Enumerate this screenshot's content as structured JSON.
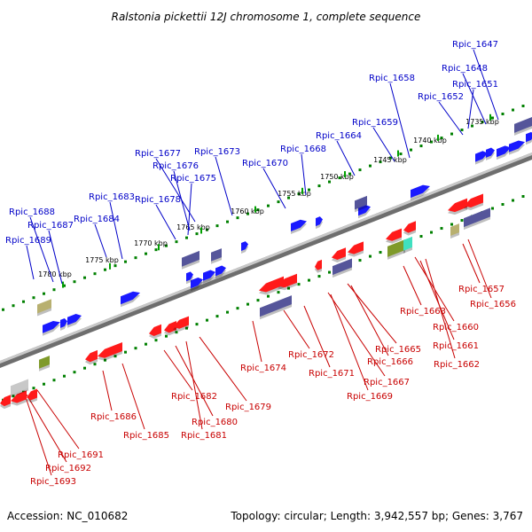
{
  "title": "Ralstonia pickettii 12J chromosome 1, complete sequence",
  "footer": {
    "accession": "Accession: NC_010682",
    "summary": "Topology: circular; Length: 3,942,557 bp; Genes: 3,767"
  },
  "colors": {
    "backbone": "#8c8c8c",
    "tick_major": "#00a000",
    "tick_minor": "#008000",
    "label_blue": "#0000c8",
    "label_red": "#c80000",
    "gene_blue": "#1a1aff",
    "gene_red": "#ff1a1a",
    "gene_navy": "#55559a",
    "gene_olive": "#7f9a2a",
    "gene_khaki": "#b8b070",
    "gene_gray": "#c8c8c8",
    "gene_teal": "#40e0c0"
  },
  "scale_labels": [
    {
      "text": "1735 kbp",
      "pos": 1735
    },
    {
      "text": "1740 kbp",
      "pos": 1740
    },
    {
      "text": "1745 kbp",
      "pos": 1745
    },
    {
      "text": "1750 kbp",
      "pos": 1750
    },
    {
      "text": "1755 kbp",
      "pos": 1755
    },
    {
      "text": "1760 kbp",
      "pos": 1760
    },
    {
      "text": "1765 kbp",
      "pos": 1765
    },
    {
      "text": "1770 kbp",
      "pos": 1770
    },
    {
      "text": "1775 kbp",
      "pos": 1775
    },
    {
      "text": "1780 kbp",
      "pos": 1780
    }
  ],
  "gene_labels_top": [
    "Rpic_1647",
    "Rpic_1648",
    "Rpic_1651",
    "Rpic_1652",
    "Rpic_1658",
    "Rpic_1659",
    "Rpic_1664",
    "Rpic_1668",
    "Rpic_1670",
    "Rpic_1673",
    "Rpic_1677",
    "Rpic_1676",
    "Rpic_1675",
    "Rpic_1678",
    "Rpic_1683",
    "Rpic_1684",
    "Rpic_1688",
    "Rpic_1687",
    "Rpic_1689"
  ],
  "gene_labels_bottom": [
    "Rpic_1657",
    "Rpic_1656",
    "Rpic_1663",
    "Rpic_1660",
    "Rpic_1661",
    "Rpic_1662",
    "Rpic_1665",
    "Rpic_1666",
    "Rpic_1667",
    "Rpic_1669",
    "Rpic_1671",
    "Rpic_1672",
    "Rpic_1674",
    "Rpic_1679",
    "Rpic_1682",
    "Rpic_1680",
    "Rpic_1681",
    "Rpic_1686",
    "Rpic_1685",
    "Rpic_1691",
    "Rpic_1692",
    "Rpic_1693"
  ]
}
